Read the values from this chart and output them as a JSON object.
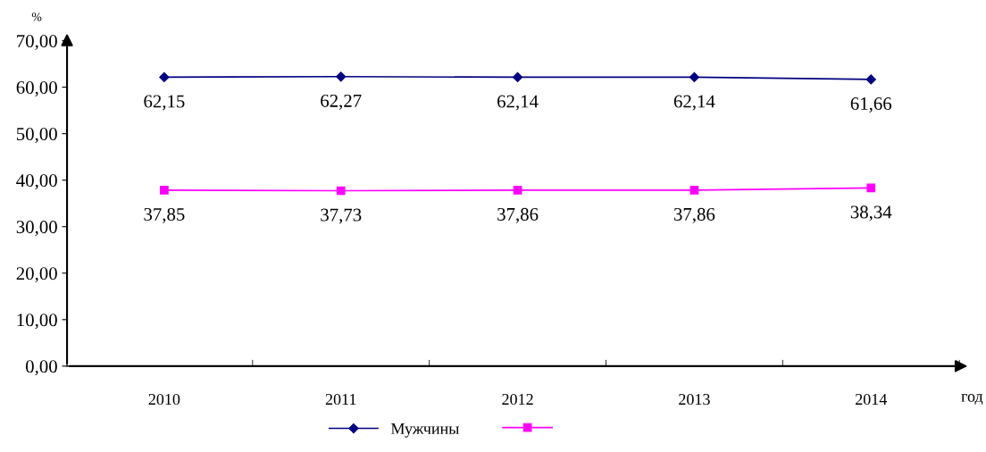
{
  "chart_data": {
    "type": "line",
    "xlabel": "год",
    "ylabel": "%",
    "categories": [
      "2010",
      "2011",
      "2012",
      "2013",
      "2014"
    ],
    "series": [
      {
        "name": "Мужчины",
        "color": "#000080",
        "marker": "diamond",
        "values": [
          62.15,
          62.27,
          62.14,
          62.14,
          61.66
        ],
        "value_labels": [
          "62,15",
          "62,27",
          "62,14",
          "62,14",
          "61,66"
        ]
      },
      {
        "color": "#ff00ff",
        "marker": "square",
        "values": [
          37.85,
          37.73,
          37.86,
          37.86,
          38.34
        ],
        "value_labels": [
          "37,85",
          "37,73",
          "37,86",
          "37,86",
          "38,34"
        ]
      }
    ],
    "ylim": [
      0,
      70
    ],
    "yticks": [
      {
        "value": 0,
        "label": "0,00"
      },
      {
        "value": 10,
        "label": "10,00"
      },
      {
        "value": 20,
        "label": "20,00"
      },
      {
        "value": 30,
        "label": "30,00"
      },
      {
        "value": 40,
        "label": "40,00"
      },
      {
        "value": 50,
        "label": "50,00"
      },
      {
        "value": 60,
        "label": "60,00"
      },
      {
        "value": 70,
        "label": "70,00"
      }
    ],
    "grid": false,
    "legend": "bottom"
  }
}
